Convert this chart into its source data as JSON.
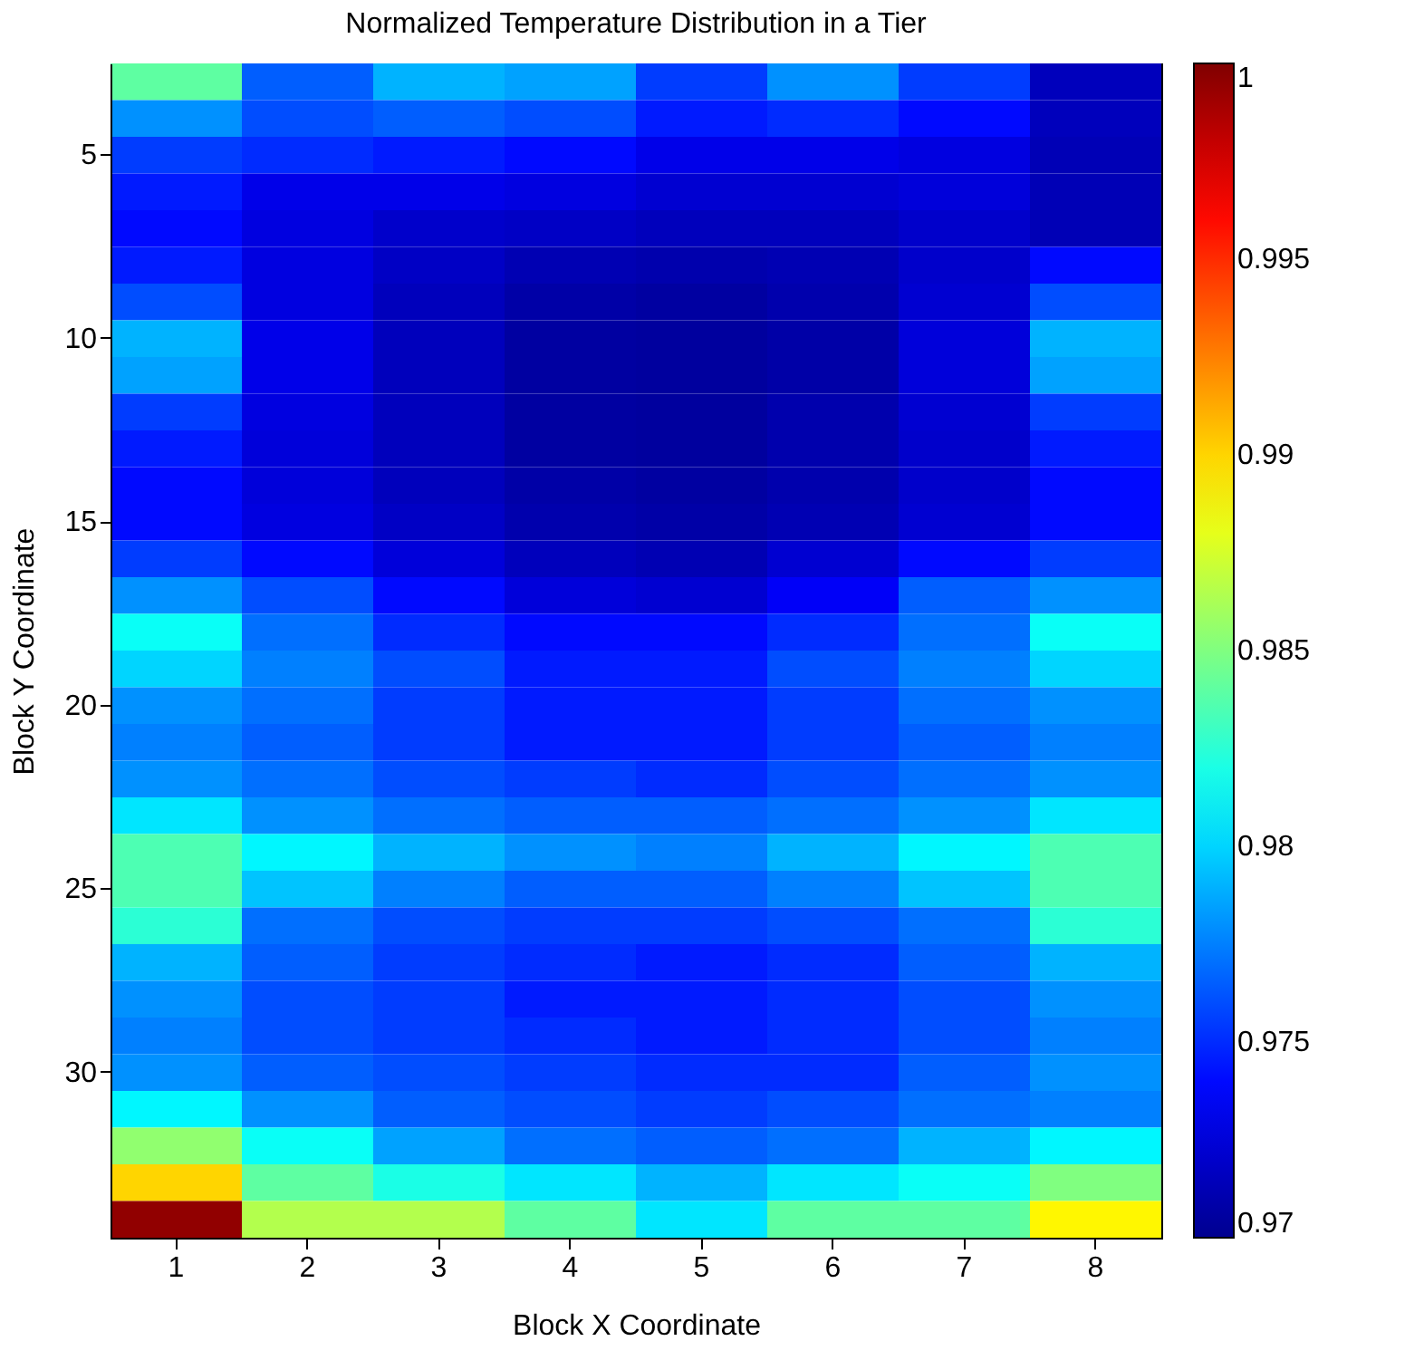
{
  "chart_data": {
    "type": "heatmap",
    "title": "Normalized Temperature Distribution in a Tier",
    "xlabel": "Block X Coordinate",
    "ylabel": "Block Y Coordinate",
    "categories": [
      "1",
      "2",
      "3",
      "4",
      "5",
      "6",
      "7",
      "8"
    ],
    "y_categories": [
      null,
      null,
      "5",
      null,
      null,
      null,
      null,
      "10",
      null,
      null,
      null,
      null,
      "15",
      null,
      null,
      null,
      null,
      "20",
      null,
      null,
      null,
      null,
      "25",
      null,
      null,
      null,
      null,
      "30",
      null,
      null,
      null,
      null
    ],
    "cells": [
      [
        0.984,
        0.9765,
        0.979,
        0.9785,
        0.9755,
        0.978,
        0.9755,
        0.9715
      ],
      [
        0.978,
        0.976,
        0.9765,
        0.976,
        0.9745,
        0.975,
        0.974,
        0.9715
      ],
      [
        0.9755,
        0.975,
        0.9745,
        0.974,
        0.973,
        0.973,
        0.9727,
        0.9713
      ],
      [
        0.9745,
        0.973,
        0.973,
        0.9727,
        0.9722,
        0.9722,
        0.9725,
        0.9713
      ],
      [
        0.974,
        0.9727,
        0.972,
        0.9718,
        0.9715,
        0.9715,
        0.972,
        0.9713
      ],
      [
        0.9745,
        0.9727,
        0.9718,
        0.9712,
        0.971,
        0.9712,
        0.972,
        0.974
      ],
      [
        0.976,
        0.9727,
        0.9715,
        0.9708,
        0.9706,
        0.971,
        0.9722,
        0.976
      ],
      [
        0.979,
        0.973,
        0.9715,
        0.9706,
        0.9705,
        0.9708,
        0.9725,
        0.979
      ],
      [
        0.9785,
        0.973,
        0.9715,
        0.9706,
        0.9705,
        0.9708,
        0.9725,
        0.9785
      ],
      [
        0.9755,
        0.9727,
        0.9715,
        0.9706,
        0.9705,
        0.971,
        0.9722,
        0.9755
      ],
      [
        0.9745,
        0.9725,
        0.9715,
        0.9706,
        0.9705,
        0.971,
        0.972,
        0.9745
      ],
      [
        0.974,
        0.9725,
        0.9715,
        0.9708,
        0.9706,
        0.971,
        0.972,
        0.974
      ],
      [
        0.974,
        0.9727,
        0.9718,
        0.971,
        0.9708,
        0.9712,
        0.9722,
        0.974
      ],
      [
        0.9755,
        0.974,
        0.9725,
        0.9715,
        0.9712,
        0.9722,
        0.974,
        0.9755
      ],
      [
        0.978,
        0.976,
        0.974,
        0.9725,
        0.9722,
        0.9735,
        0.9765,
        0.978
      ],
      [
        0.9815,
        0.977,
        0.975,
        0.974,
        0.974,
        0.975,
        0.977,
        0.9815
      ],
      [
        0.98,
        0.9775,
        0.976,
        0.9745,
        0.9745,
        0.976,
        0.9775,
        0.98
      ],
      [
        0.978,
        0.977,
        0.9755,
        0.9745,
        0.9745,
        0.9755,
        0.977,
        0.978
      ],
      [
        0.9775,
        0.9765,
        0.9755,
        0.9745,
        0.9745,
        0.9755,
        0.9765,
        0.9775
      ],
      [
        0.978,
        0.977,
        0.976,
        0.9755,
        0.975,
        0.976,
        0.977,
        0.978
      ],
      [
        0.9805,
        0.978,
        0.977,
        0.9765,
        0.9765,
        0.977,
        0.978,
        0.9805
      ],
      [
        0.9835,
        0.981,
        0.979,
        0.978,
        0.9775,
        0.979,
        0.981,
        0.9835
      ],
      [
        0.9835,
        0.9795,
        0.9775,
        0.9765,
        0.9765,
        0.9775,
        0.9795,
        0.9835
      ],
      [
        0.9825,
        0.977,
        0.976,
        0.9755,
        0.9755,
        0.976,
        0.977,
        0.9825
      ],
      [
        0.979,
        0.9765,
        0.9755,
        0.975,
        0.9745,
        0.975,
        0.9765,
        0.979
      ],
      [
        0.978,
        0.976,
        0.9755,
        0.9745,
        0.9745,
        0.975,
        0.976,
        0.978
      ],
      [
        0.9775,
        0.976,
        0.9755,
        0.975,
        0.9745,
        0.975,
        0.976,
        0.9775
      ],
      [
        0.978,
        0.9765,
        0.976,
        0.9755,
        0.975,
        0.975,
        0.9765,
        0.978
      ],
      [
        0.981,
        0.978,
        0.9765,
        0.976,
        0.9755,
        0.976,
        0.977,
        0.9775
      ],
      [
        0.9855,
        0.9815,
        0.9785,
        0.977,
        0.9765,
        0.977,
        0.979,
        0.981
      ],
      [
        0.99,
        0.984,
        0.982,
        0.9805,
        0.979,
        0.9805,
        0.9815,
        0.985
      ],
      [
        0.9995,
        0.9865,
        0.9865,
        0.984,
        0.9805,
        0.984,
        0.984,
        0.989
      ]
    ],
    "clim": [
      0.97,
      1
    ],
    "cticks": [
      0.97,
      0.975,
      0.98,
      0.985,
      0.99,
      0.995,
      1
    ]
  }
}
